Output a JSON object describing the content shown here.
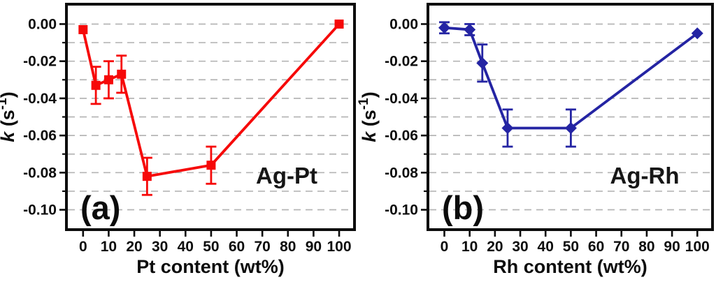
{
  "figure": {
    "type": "dual-panel-line-chart",
    "background": "#ffffff",
    "text_color": "#0c0c0c",
    "grid_color": "#b5b5b5"
  },
  "chart_data": [
    {
      "type": "line",
      "panel_label": "(a)",
      "annotation": "Ag-Pt",
      "xlabel": "Pt content (wt%)",
      "ylabel": "k (s⁻¹)",
      "ylabel_parts": {
        "variable": "k",
        "unit_open": " (s",
        "superscript": "-1",
        "unit_close": ")"
      },
      "series": [
        {
          "name": "Ag-Pt",
          "color": "#f60909",
          "marker": "square",
          "x": [
            0,
            5,
            10,
            15,
            25,
            50,
            100
          ],
          "y": [
            -0.003,
            -0.033,
            -0.03,
            -0.027,
            -0.082,
            -0.076,
            0.0
          ],
          "yerr": [
            0,
            0.01,
            0.01,
            0.01,
            0.01,
            0.01,
            0
          ]
        }
      ],
      "xlim": [
        -6.5,
        106
      ],
      "ylim": [
        -0.1107,
        0.0107
      ],
      "xticks": [
        0,
        10,
        20,
        30,
        40,
        50,
        60,
        70,
        80,
        90,
        100
      ],
      "yticks": [
        0,
        -0.02,
        -0.04,
        -0.06,
        -0.08,
        -0.1
      ],
      "yminor": [
        -0.01,
        -0.03,
        -0.05,
        -0.07,
        -0.09
      ],
      "grid": "horizontal dashed every 0.01",
      "legend": "none"
    },
    {
      "type": "line",
      "panel_label": "(b)",
      "annotation": "Ag-Rh",
      "xlabel": "Rh content (wt%)",
      "ylabel": "k (s⁻¹)",
      "ylabel_parts": {
        "variable": "k",
        "unit_open": " (s",
        "superscript": "-1",
        "unit_close": ")"
      },
      "series": [
        {
          "name": "Ag-Rh",
          "color": "#2424a3",
          "marker": "diamond",
          "x": [
            0,
            10,
            15,
            25,
            50,
            100
          ],
          "y": [
            -0.002,
            -0.003,
            -0.021,
            -0.056,
            -0.056,
            -0.005
          ],
          "yerr": [
            0.003,
            0.003,
            0.01,
            0.01,
            0.01,
            0
          ]
        }
      ],
      "xlim": [
        -6.5,
        106
      ],
      "ylim": [
        -0.1107,
        0.0107
      ],
      "xticks": [
        0,
        10,
        20,
        30,
        40,
        50,
        60,
        70,
        80,
        90,
        100
      ],
      "yticks": [
        0,
        -0.02,
        -0.04,
        -0.06,
        -0.08,
        -0.1
      ],
      "yminor": [
        -0.01,
        -0.03,
        -0.05,
        -0.07,
        -0.09
      ],
      "grid": "horizontal dashed every 0.01",
      "legend": "none"
    }
  ]
}
